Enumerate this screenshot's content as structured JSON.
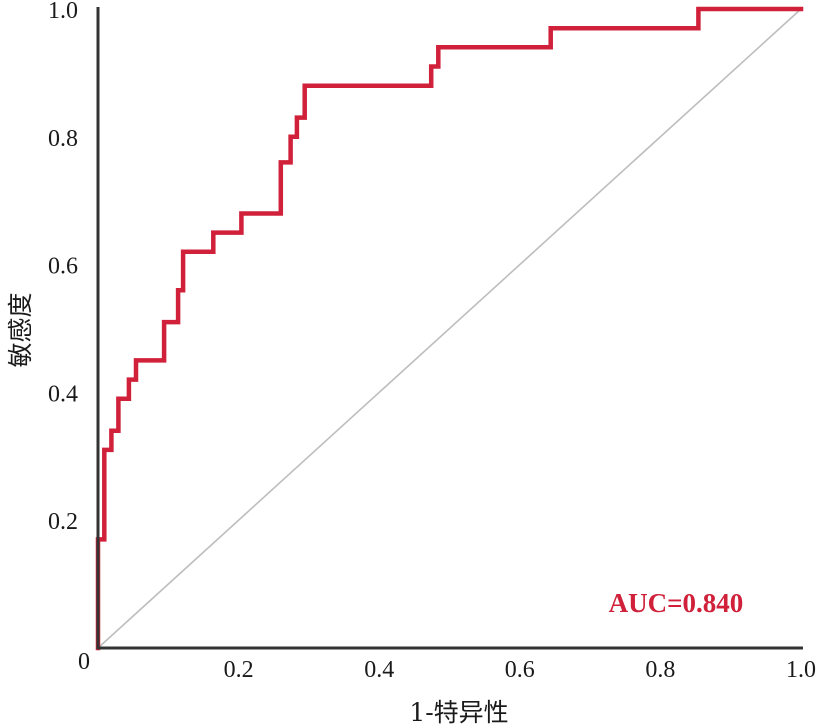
{
  "chart_data": {
    "type": "line",
    "title": "",
    "xlabel": "1-特异性",
    "ylabel": "敏感度",
    "xlim": [
      0,
      1
    ],
    "ylim": [
      0,
      1
    ],
    "origin_label": "0",
    "x_ticks": [
      "0.2",
      "0.4",
      "0.6",
      "0.8",
      "1.0"
    ],
    "y_ticks": [
      "0.2",
      "0.4",
      "0.6",
      "0.8",
      "1.0"
    ],
    "grid": false,
    "annotation": "AUC=0.840",
    "colors": {
      "roc": "#d0203a",
      "reference": "#bdbdbd",
      "axis": "#333333"
    },
    "series": [
      {
        "x": [
          0.0,
          0.0,
          0.009,
          0.009,
          0.019,
          0.019,
          0.029,
          0.029,
          0.044,
          0.044,
          0.054,
          0.054,
          0.094,
          0.094,
          0.114,
          0.114,
          0.121,
          0.121,
          0.164,
          0.164,
          0.204,
          0.204,
          0.26,
          0.26,
          0.274,
          0.274,
          0.283,
          0.283,
          0.294,
          0.294,
          0.474,
          0.474,
          0.484,
          0.484,
          0.644,
          0.644,
          0.854,
          0.854,
          1.0
        ],
        "y": [
          0.0,
          0.17,
          0.17,
          0.31,
          0.31,
          0.34,
          0.34,
          0.39,
          0.39,
          0.42,
          0.42,
          0.45,
          0.45,
          0.51,
          0.51,
          0.56,
          0.56,
          0.62,
          0.62,
          0.65,
          0.65,
          0.68,
          0.68,
          0.76,
          0.76,
          0.8,
          0.8,
          0.83,
          0.83,
          0.88,
          0.88,
          0.91,
          0.91,
          0.94,
          0.94,
          0.97,
          0.97,
          1.0,
          1.0
        ]
      },
      {
        "x": [
          0,
          1
        ],
        "y": [
          0,
          1
        ]
      }
    ]
  }
}
